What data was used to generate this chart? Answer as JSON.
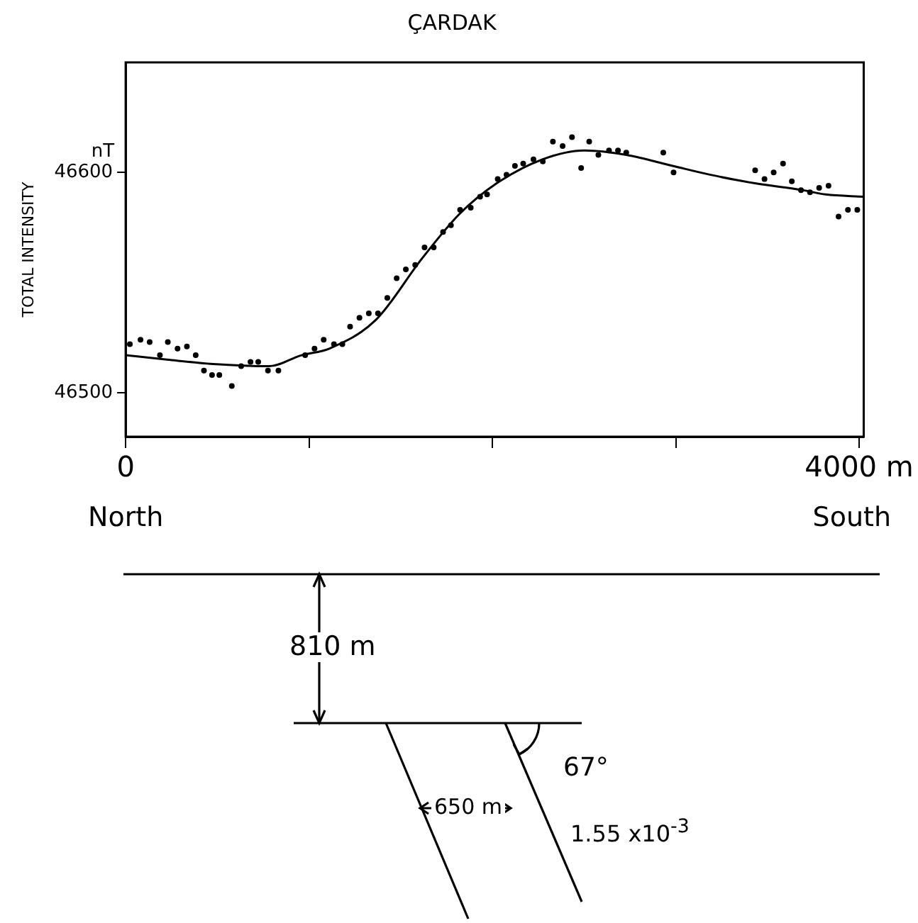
{
  "chart_data": {
    "type": "scatter",
    "title": "ÇARDAK",
    "ylabel": "TOTAL INTENSITY",
    "xlim": [
      0,
      4025
    ],
    "ylim": [
      46480,
      46650
    ],
    "xticks": [
      0,
      {
        "value": 1000,
        "label": null
      },
      {
        "value": 2000,
        "label": null
      },
      {
        "value": 3000,
        "label": null
      },
      {
        "value": 4000,
        "label": "4000 m"
      }
    ],
    "yticks": [
      46500,
      46600
    ],
    "grid": false,
    "legend": false,
    "series": [
      {
        "type": "scatter",
        "color": "#000000",
        "marker": "circle",
        "x": [
          23,
          81,
          131,
          187,
          230,
          283,
          334,
          382,
          427,
          471,
          511,
          579,
          630,
          681,
          723,
          776,
          833,
          979,
          1030,
          1080,
          1136,
          1182,
          1224,
          1275,
          1326,
          1376,
          1427,
          1478,
          1528,
          1579,
          1630,
          1680,
          1731,
          1774,
          1824,
          1882,
          1933,
          1971,
          2029,
          2077,
          2123,
          2168,
          2224,
          2275,
          2330,
          2383,
          2434,
          2484,
          2528,
          2578,
          2636,
          2685,
          2730,
          2932,
          2988,
          3433,
          3484,
          3534,
          3585,
          3633,
          3683,
          3732,
          3782,
          3833,
          3888,
          3939,
          3990
        ],
        "values": [
          46522,
          46524,
          46523,
          46517,
          46523,
          46520,
          46521,
          46517,
          46510,
          46508,
          46508,
          46503,
          46512,
          46514,
          46514,
          46510,
          46510,
          46517,
          46520,
          46524,
          46522,
          46522,
          46530,
          46534,
          46536,
          46536,
          46543,
          46552,
          46556,
          46558,
          46566,
          46566,
          46573,
          46576,
          46583,
          46584,
          46589,
          46590,
          46597,
          46599,
          46603,
          46604,
          46606,
          46605,
          46614,
          46612,
          46616,
          46602,
          46614,
          46608,
          46610,
          46610,
          46609,
          46609,
          46600,
          46601,
          46597,
          46600,
          46604,
          46596,
          46592,
          46591,
          46593,
          46594,
          46580,
          46583,
          46583
        ]
      },
      {
        "type": "line",
        "color": "#000000",
        "marker": "none",
        "line_style": "solid",
        "x": [
          0,
          225,
          478,
          782,
          959,
          1110,
          1364,
          1617,
          1819,
          2022,
          2275,
          2502,
          2730,
          2983,
          3186,
          3438,
          3691,
          3818,
          4025
        ],
        "values": [
          46517,
          46515,
          46513,
          46512,
          46517,
          46520,
          46533,
          46561,
          46581,
          46595,
          46606,
          46610,
          46608,
          46603,
          46599,
          46595,
          46592,
          46590,
          46589
        ]
      }
    ],
    "annotations": [
      "nT",
      "North",
      "South",
      "810 m",
      "67°",
      "650 m",
      "1.55 x10$^{-3}$"
    ]
  }
}
